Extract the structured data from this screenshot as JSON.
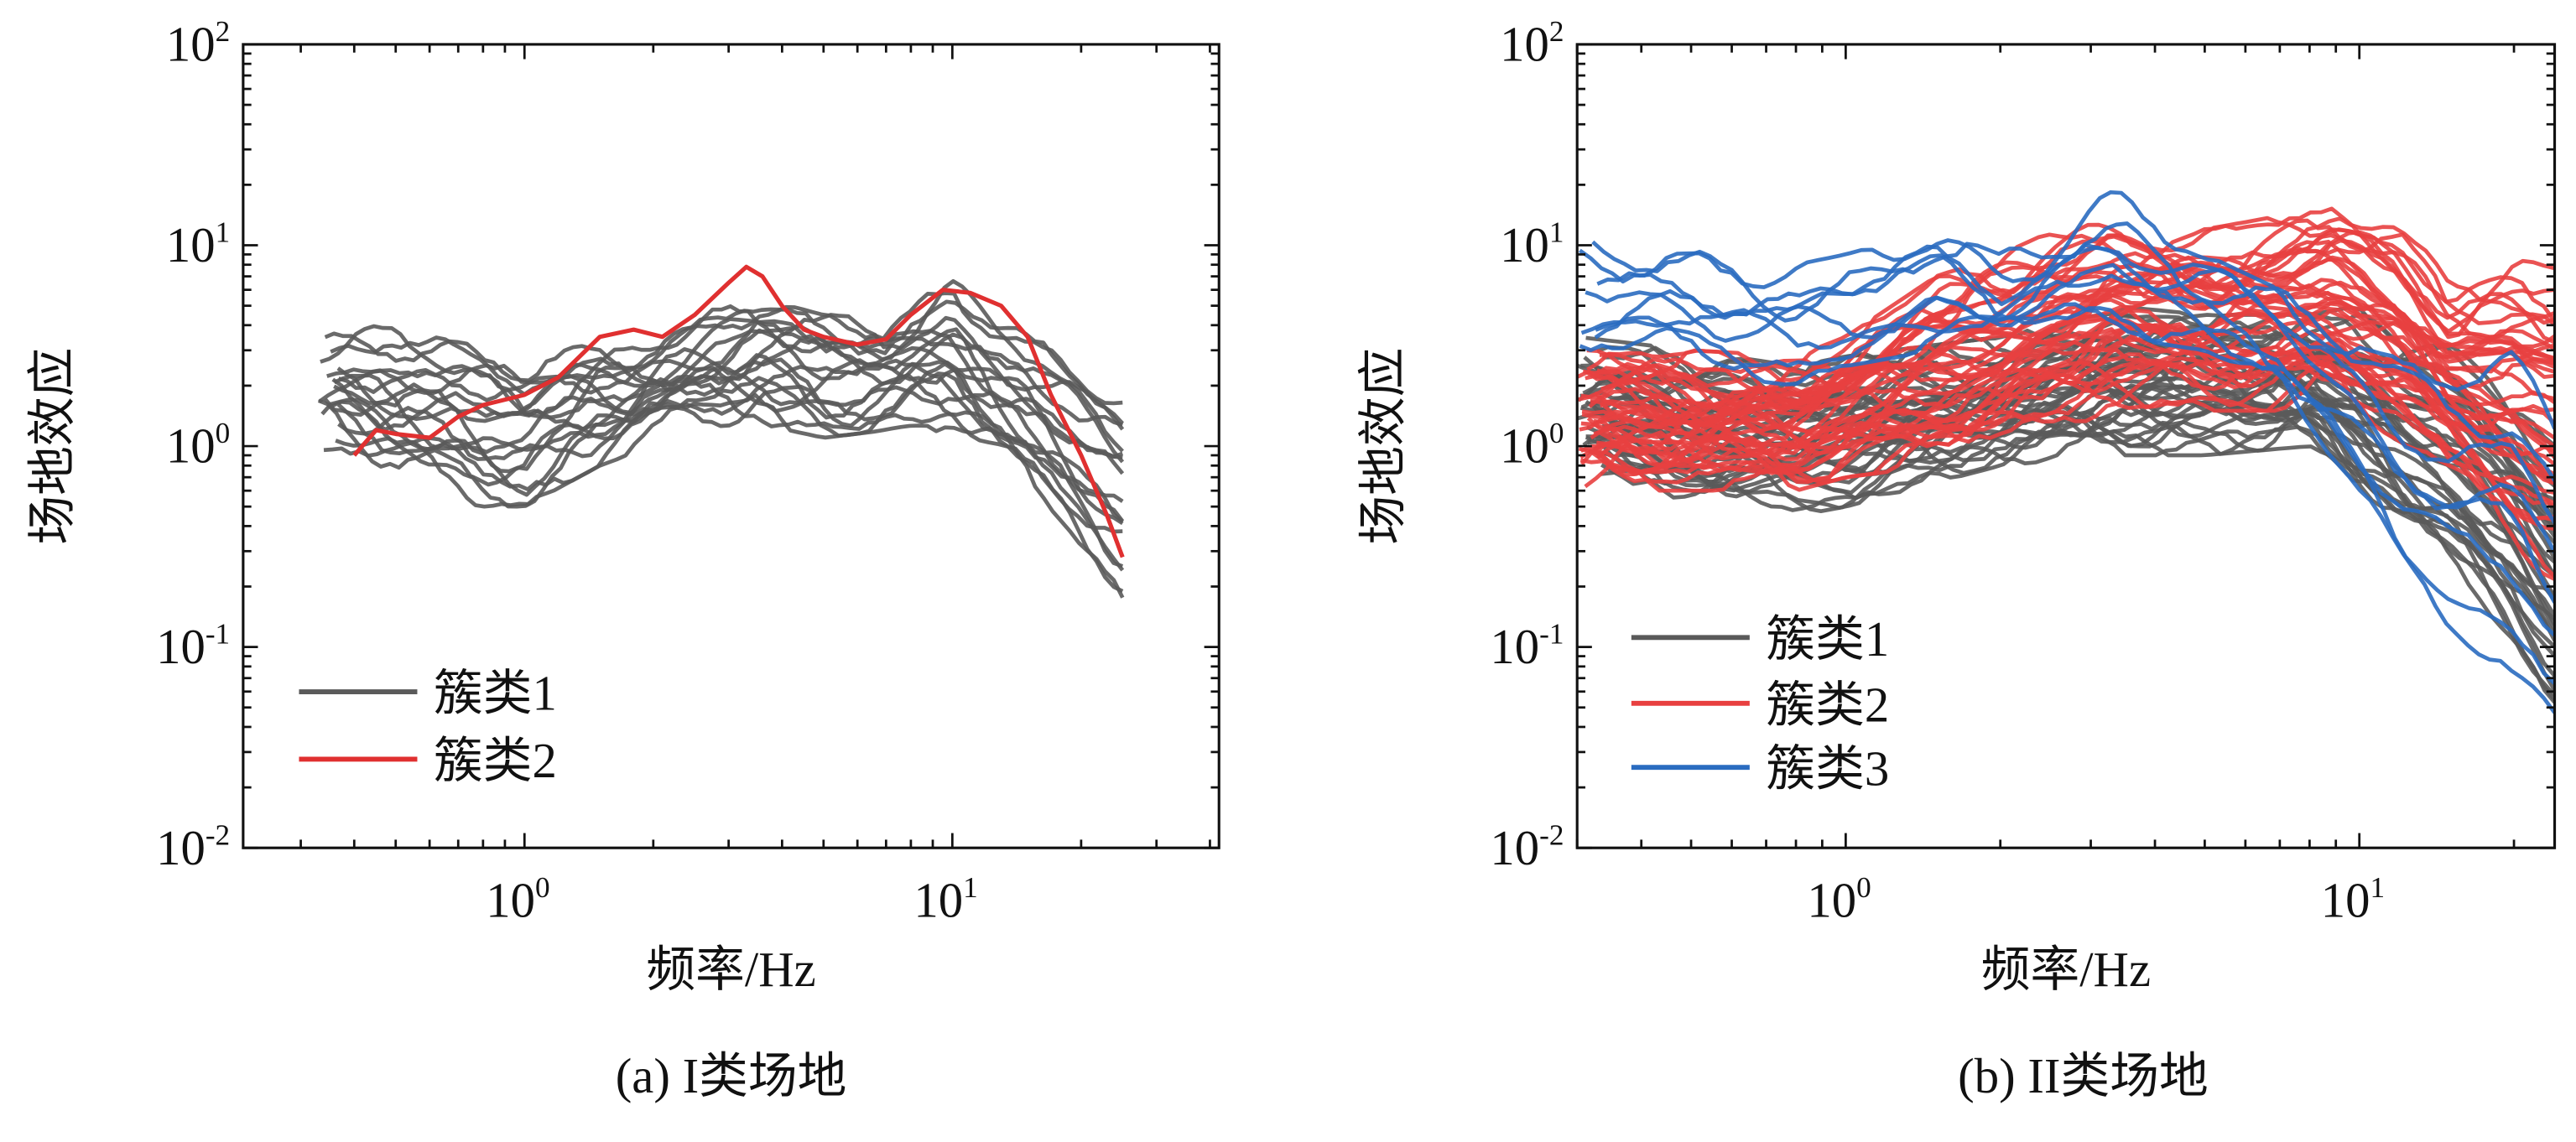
{
  "chart_data": [
    {
      "type": "line",
      "caption": "(a) I类场地",
      "xlabel": "频率/Hz",
      "ylabel": "场地效应",
      "xscale": "log",
      "yscale": "log",
      "xlim": [
        0.22,
        42
      ],
      "ylim": [
        0.01,
        100
      ],
      "xticks": [
        {
          "base": "10",
          "exp": "0",
          "value": 1
        },
        {
          "base": "10",
          "exp": "1",
          "value": 10
        }
      ],
      "yticks": [
        {
          "base": "10",
          "exp": "2",
          "value": 100
        },
        {
          "base": "10",
          "exp": "1",
          "value": 10
        },
        {
          "base": "10",
          "exp": "0",
          "value": 1
        },
        {
          "base": "10",
          "exp": "-1",
          "value": 0.1
        },
        {
          "base": "10",
          "exp": "-2",
          "value": 0.01
        }
      ],
      "grid": false,
      "legend_position": "bottom-left",
      "legend": [
        {
          "label": "簇类1",
          "color": "#5a5a5a"
        },
        {
          "label": "簇类2",
          "color": "#e03030"
        }
      ],
      "groups": [
        {
          "name": "簇类1",
          "color": "#5a5a5a",
          "count": 18,
          "x_range": [
            0.33,
            25
          ],
          "envelope_x": [
            0.33,
            0.5,
            0.8,
            1.0,
            1.5,
            2.0,
            3.5,
            5.0,
            7.0,
            10.0,
            15.0,
            20.0,
            25.0
          ],
          "envelope_low": [
            0.9,
            0.6,
            0.5,
            0.5,
            0.8,
            1.0,
            1.3,
            1.1,
            1.2,
            1.0,
            0.5,
            0.3,
            0.16
          ],
          "envelope_high": [
            4.2,
            4.5,
            3.0,
            2.5,
            3.5,
            4.0,
            5.5,
            4.5,
            4.5,
            8.5,
            4.0,
            2.5,
            2.0
          ]
        },
        {
          "name": "簇类2",
          "color": "#e03030",
          "count": 1,
          "x_range": [
            0.4,
            25
          ],
          "x": [
            0.4,
            0.45,
            0.5,
            0.6,
            0.7,
            0.8,
            1.0,
            1.2,
            1.5,
            1.8,
            2.1,
            2.5,
            3.0,
            3.3,
            3.6,
            4.0,
            4.5,
            5.0,
            6.0,
            7.0,
            8.0,
            9.5,
            11.0,
            13.0,
            15.0,
            17.0,
            20.0,
            23.0,
            25.0
          ],
          "values": [
            0.9,
            1.2,
            1.15,
            1.1,
            1.4,
            1.6,
            1.8,
            2.2,
            3.5,
            3.8,
            3.5,
            4.5,
            6.5,
            7.8,
            7.0,
            5.0,
            3.8,
            3.5,
            3.2,
            3.4,
            4.5,
            6.0,
            5.8,
            5.0,
            3.5,
            1.8,
            0.9,
            0.45,
            0.28
          ]
        }
      ]
    },
    {
      "type": "line",
      "caption": "(b) II类场地",
      "xlabel": "频率/Hz",
      "ylabel": "场地效应",
      "xscale": "log",
      "yscale": "log",
      "xlim": [
        0.3,
        24
      ],
      "ylim": [
        0.01,
        100
      ],
      "xticks": [
        {
          "base": "10",
          "exp": "0",
          "value": 1
        },
        {
          "base": "10",
          "exp": "1",
          "value": 10
        }
      ],
      "yticks": [
        {
          "base": "10",
          "exp": "2",
          "value": 100
        },
        {
          "base": "10",
          "exp": "1",
          "value": 10
        },
        {
          "base": "10",
          "exp": "0",
          "value": 1
        },
        {
          "base": "10",
          "exp": "-1",
          "value": 0.1
        },
        {
          "base": "10",
          "exp": "-2",
          "value": 0.01
        }
      ],
      "grid": false,
      "legend_position": "left",
      "legend": [
        {
          "label": "簇类1",
          "color": "#5a5a5a"
        },
        {
          "label": "簇类2",
          "color": "#e84040"
        },
        {
          "label": "簇类3",
          "color": "#2a6cc0"
        }
      ],
      "groups": [
        {
          "name": "簇类1",
          "color": "#5a5a5a",
          "count": 35,
          "x_range": [
            0.3,
            24
          ],
          "envelope_x": [
            0.3,
            0.5,
            0.8,
            1.0,
            2.0,
            3.3,
            5.0,
            8.0,
            10.0,
            15.0,
            20.0,
            24.0
          ],
          "envelope_low": [
            0.8,
            0.5,
            0.45,
            0.5,
            0.8,
            0.9,
            0.9,
            1.0,
            0.5,
            0.2,
            0.08,
            0.04
          ],
          "envelope_high": [
            3.5,
            3.0,
            2.5,
            2.8,
            3.5,
            5.0,
            4.5,
            4.5,
            5.0,
            4.0,
            2.0,
            1.2
          ]
        },
        {
          "name": "簇类2",
          "color": "#e84040",
          "count": 40,
          "x_range": [
            0.3,
            24
          ],
          "envelope_x": [
            0.3,
            0.5,
            0.8,
            1.0,
            1.5,
            2.0,
            3.3,
            5.0,
            7.0,
            9.0,
            12.0,
            15.0,
            20.0,
            24.0
          ],
          "envelope_low": [
            0.6,
            0.6,
            0.6,
            0.7,
            0.8,
            0.9,
            1.5,
            1.5,
            1.5,
            1.5,
            1.0,
            0.6,
            0.3,
            0.2
          ],
          "envelope_high": [
            3.0,
            3.0,
            2.8,
            3.5,
            7.0,
            9.0,
            16.0,
            12.0,
            14.0,
            17.0,
            14.0,
            7.0,
            11.0,
            10.0
          ]
        },
        {
          "name": "簇类3",
          "color": "#2a6cc0",
          "count": 8,
          "x_range": [
            0.3,
            24
          ],
          "envelope_x": [
            0.3,
            0.5,
            0.8,
            1.0,
            1.5,
            2.0,
            3.3,
            5.0,
            7.0,
            9.0,
            12.0,
            15.0,
            20.0,
            24.0
          ],
          "envelope_low": [
            2.5,
            2.3,
            2.0,
            2.5,
            3.0,
            3.0,
            3.5,
            3.0,
            2.0,
            0.6,
            0.15,
            0.08,
            0.05,
            0.035
          ],
          "envelope_high": [
            11.0,
            11.0,
            8.0,
            9.0,
            12.0,
            9.0,
            20.0,
            9.0,
            6.0,
            5.0,
            4.0,
            4.0,
            4.0,
            1.5
          ]
        }
      ]
    }
  ]
}
